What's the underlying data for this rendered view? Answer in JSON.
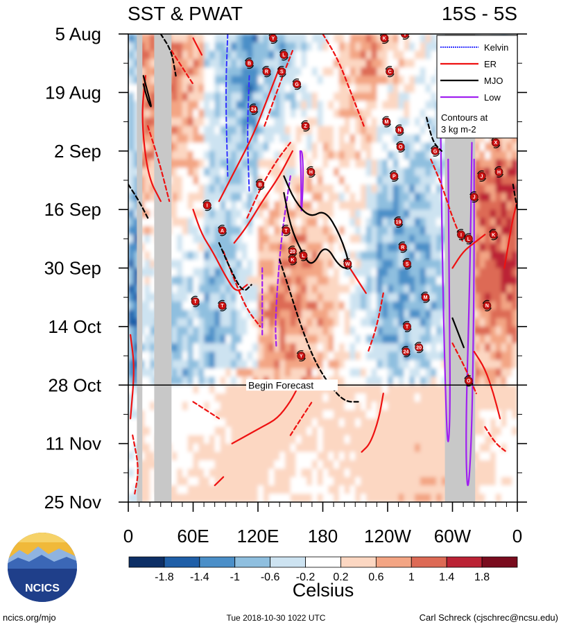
{
  "chart_data": {
    "type": "heatmap",
    "title": "SST & PWAT",
    "subtitle": "15S - 5S",
    "x_tick_labels": [
      "0",
      "60E",
      "120E",
      "180",
      "120W",
      "60W",
      "0"
    ],
    "x_tick_degrees": [
      0,
      60,
      120,
      180,
      240,
      300,
      360
    ],
    "xlim": [
      0,
      360
    ],
    "y_tick_labels": [
      "5 Aug",
      "19 Aug",
      "2 Sep",
      "16 Sep",
      "30 Sep",
      "14 Oct",
      "28 Oct",
      "11 Nov",
      "25 Nov"
    ],
    "y_tick_days": [
      0,
      14,
      28,
      42,
      56,
      70,
      84,
      98,
      112
    ],
    "ylim_days": [
      0,
      112
    ],
    "forecast_start_day": 84,
    "forecast_label": "Begin Forecast",
    "land_masks_deg": [
      [
        8,
        13
      ],
      [
        24,
        40
      ],
      [
        293,
        321
      ]
    ],
    "colorbar": {
      "label": "Celsius",
      "tick_labels": [
        "-1.8",
        "-1.4",
        "-1",
        "-0.6",
        "-0.2",
        "0.2",
        "0.6",
        "1",
        "1.4",
        "1.8"
      ],
      "colors": [
        "#0d2f66",
        "#1f5fa8",
        "#4b8fc8",
        "#8fbfdf",
        "#cde3f1",
        "#ffffff",
        "#fcd7c2",
        "#f3a584",
        "#dd6a55",
        "#bb2335",
        "#7a0c1e"
      ]
    },
    "legend": {
      "placement": "top-right",
      "items": [
        {
          "name": "Kelvin",
          "color": "#3232ff"
        },
        {
          "name": "ER",
          "color": "#ee1111"
        },
        {
          "name": "MJO",
          "color": "#000000"
        },
        {
          "name": "Low",
          "color": "#a020f0"
        }
      ],
      "note_line1": "Contours at",
      "note_line2": "3 kg m-2"
    },
    "storms": [
      {
        "label": "Y",
        "lon": 134,
        "day": 1
      },
      {
        "label": "K",
        "lon": 237,
        "day": 1
      },
      {
        "label": "V",
        "lon": 256,
        "day": 0
      },
      {
        "label": "L",
        "lon": 144,
        "day": 5
      },
      {
        "label": "B",
        "lon": 112,
        "day": 7
      },
      {
        "label": "R",
        "lon": 128,
        "day": 9
      },
      {
        "label": "S",
        "lon": 142,
        "day": 9
      },
      {
        "label": "C",
        "lon": 242,
        "day": 9
      },
      {
        "label": "G",
        "lon": 156,
        "day": 12
      },
      {
        "label": "24",
        "lon": 116,
        "day": 18
      },
      {
        "label": "M",
        "lon": 239,
        "day": 21
      },
      {
        "label": "N",
        "lon": 251,
        "day": 23
      },
      {
        "label": "Z",
        "lon": 164,
        "day": 22
      },
      {
        "label": "O",
        "lon": 252,
        "day": 27
      },
      {
        "label": "G",
        "lon": 284,
        "day": 28
      },
      {
        "label": "X",
        "lon": 340,
        "day": 26
      },
      {
        "label": "H",
        "lon": 169,
        "day": 33
      },
      {
        "label": "H",
        "lon": 343,
        "day": 33
      },
      {
        "label": "P",
        "lon": 246,
        "day": 34
      },
      {
        "label": "J",
        "lon": 327,
        "day": 34
      },
      {
        "label": "B",
        "lon": 122,
        "day": 36
      },
      {
        "label": "J",
        "lon": 320,
        "day": 39
      },
      {
        "label": "I",
        "lon": 73,
        "day": 41
      },
      {
        "label": "19",
        "lon": 250,
        "day": 45
      },
      {
        "label": "A",
        "lon": 87,
        "day": 47
      },
      {
        "label": "T",
        "lon": 146,
        "day": 47
      },
      {
        "label": "I",
        "lon": 308,
        "day": 48
      },
      {
        "label": "L",
        "lon": 315,
        "day": 49
      },
      {
        "label": "K",
        "lon": 338,
        "day": 48
      },
      {
        "label": "R",
        "lon": 254,
        "day": 51
      },
      {
        "label": "20",
        "lon": 152,
        "day": 52
      },
      {
        "label": "L",
        "lon": 162,
        "day": 53
      },
      {
        "label": "K",
        "lon": 152,
        "day": 54
      },
      {
        "label": "W",
        "lon": 203,
        "day": 55
      },
      {
        "label": "S",
        "lon": 258,
        "day": 55
      },
      {
        "label": "M",
        "lon": 275,
        "day": 63
      },
      {
        "label": "T",
        "lon": 62,
        "day": 64
      },
      {
        "label": "T",
        "lon": 87,
        "day": 65
      },
      {
        "label": "N",
        "lon": 332,
        "day": 65
      },
      {
        "label": "T",
        "lon": 258,
        "day": 70
      },
      {
        "label": "24",
        "lon": 257,
        "day": 76
      },
      {
        "label": "20",
        "lon": 269,
        "day": 75
      },
      {
        "label": "Y",
        "lon": 160,
        "day": 77
      },
      {
        "label": "O",
        "lon": 315,
        "day": 83
      }
    ],
    "contours": [
      {
        "type": "Kelvin",
        "phase": "neg",
        "points": [
          [
            92,
            0
          ],
          [
            90,
            14
          ],
          [
            92,
            34
          ]
        ]
      },
      {
        "type": "Kelvin",
        "phase": "neg",
        "points": [
          [
            112,
            10
          ],
          [
            110,
            24
          ],
          [
            112,
            38
          ]
        ]
      },
      {
        "type": "Low",
        "phase": "pos",
        "points": [
          [
            159,
            28
          ],
          [
            160,
            34
          ],
          [
            160,
            45
          ],
          [
            162,
            34
          ],
          [
            161,
            28
          ],
          [
            159,
            28
          ]
        ]
      },
      {
        "type": "Low",
        "phase": "neg",
        "points": [
          [
            150,
            34
          ],
          [
            142,
            48
          ],
          [
            138,
            60
          ],
          [
            136,
            70
          ],
          [
            137,
            75
          ]
        ]
      },
      {
        "type": "Low",
        "phase": "neg",
        "points": [
          [
            124,
            56
          ],
          [
            124,
            66
          ],
          [
            124,
            72
          ]
        ]
      },
      {
        "type": "Low",
        "phase": "pos",
        "points": [
          [
            289,
            22
          ],
          [
            291,
            60
          ],
          [
            294,
            90
          ],
          [
            296,
            100
          ],
          [
            298,
            90
          ],
          [
            297,
            60
          ],
          [
            296,
            30
          ]
        ]
      },
      {
        "type": "Low",
        "phase": "pos",
        "points": [
          [
            318,
            26
          ],
          [
            316,
            60
          ],
          [
            312,
            96
          ],
          [
            314,
            112
          ],
          [
            318,
            96
          ],
          [
            320,
            60
          ],
          [
            320,
            30
          ]
        ]
      },
      {
        "type": "ER",
        "phase": "pos",
        "points": [
          [
            60,
            1
          ],
          [
            64,
            3
          ],
          [
            68,
            5
          ]
        ]
      },
      {
        "type": "ER",
        "phase": "pos",
        "points": [
          [
            16,
            10
          ],
          [
            12,
            20
          ],
          [
            18,
            34
          ],
          [
            30,
            40
          ]
        ]
      },
      {
        "type": "ER",
        "phase": "pos",
        "points": [
          [
            60,
            42
          ],
          [
            68,
            48
          ],
          [
            78,
            52
          ],
          [
            90,
            58
          ],
          [
            100,
            62
          ],
          [
            110,
            60
          ]
        ]
      },
      {
        "type": "ER",
        "phase": "pos",
        "points": [
          [
            98,
            50
          ],
          [
            110,
            46
          ],
          [
            124,
            40
          ],
          [
            140,
            34
          ],
          [
            152,
            28
          ]
        ]
      },
      {
        "type": "ER",
        "phase": "pos",
        "points": [
          [
            84,
            40
          ],
          [
            100,
            32
          ],
          [
            116,
            24
          ],
          [
            128,
            16
          ],
          [
            140,
            8
          ]
        ]
      },
      {
        "type": "ER",
        "phase": "pos",
        "points": [
          [
            2,
            72
          ],
          [
            6,
            80
          ],
          [
            2,
            92
          ]
        ]
      },
      {
        "type": "ER",
        "phase": "pos",
        "points": [
          [
            96,
            98
          ],
          [
            110,
            96
          ],
          [
            124,
            94
          ],
          [
            138,
            92
          ],
          [
            150,
            88
          ],
          [
            158,
            84
          ]
        ]
      },
      {
        "type": "ER",
        "phase": "pos",
        "points": [
          [
            200,
            54
          ],
          [
            210,
            58
          ],
          [
            220,
            62
          ]
        ]
      },
      {
        "type": "ER",
        "phase": "pos",
        "points": [
          [
            236,
            86
          ],
          [
            232,
            92
          ],
          [
            224,
            98
          ],
          [
            216,
            100
          ]
        ]
      },
      {
        "type": "ER",
        "phase": "pos",
        "points": [
          [
            300,
            56
          ],
          [
            310,
            52
          ],
          [
            320,
            50
          ],
          [
            330,
            48
          ]
        ]
      },
      {
        "type": "ER",
        "phase": "pos",
        "points": [
          [
            320,
            76
          ],
          [
            330,
            80
          ],
          [
            338,
            86
          ],
          [
            344,
            92
          ]
        ]
      },
      {
        "type": "ER",
        "phase": "pos",
        "points": [
          [
            348,
            56
          ],
          [
            352,
            50
          ],
          [
            356,
            44
          ],
          [
            360,
            40
          ]
        ]
      },
      {
        "type": "ER",
        "phase": "pos",
        "points": [
          [
            80,
            108
          ],
          [
            88,
            106
          ]
        ]
      },
      {
        "type": "ER",
        "phase": "neg",
        "points": [
          [
            40,
            4
          ],
          [
            50,
            8
          ],
          [
            60,
            12
          ]
        ]
      },
      {
        "type": "ER",
        "phase": "neg",
        "points": [
          [
            18,
            22
          ],
          [
            28,
            30
          ],
          [
            38,
            40
          ]
        ]
      },
      {
        "type": "ER",
        "phase": "neg",
        "points": [
          [
            88,
            52
          ],
          [
            100,
            60
          ],
          [
            110,
            66
          ],
          [
            122,
            70
          ]
        ]
      },
      {
        "type": "ER",
        "phase": "neg",
        "points": [
          [
            110,
            44
          ],
          [
            124,
            36
          ],
          [
            138,
            30
          ],
          [
            150,
            26
          ]
        ]
      },
      {
        "type": "ER",
        "phase": "neg",
        "points": [
          [
            126,
            22
          ],
          [
            140,
            12
          ],
          [
            152,
            4
          ]
        ]
      },
      {
        "type": "ER",
        "phase": "neg",
        "points": [
          [
            180,
            0
          ],
          [
            194,
            6
          ],
          [
            206,
            14
          ],
          [
            218,
            22
          ]
        ]
      },
      {
        "type": "ER",
        "phase": "neg",
        "points": [
          [
            236,
            62
          ],
          [
            230,
            70
          ],
          [
            222,
            76
          ]
        ]
      },
      {
        "type": "ER",
        "phase": "neg",
        "points": [
          [
            4,
            96
          ],
          [
            10,
            104
          ],
          [
            6,
            110
          ]
        ]
      },
      {
        "type": "ER",
        "phase": "neg",
        "points": [
          [
            60,
            88
          ],
          [
            72,
            90
          ],
          [
            84,
            92
          ]
        ]
      },
      {
        "type": "ER",
        "phase": "neg",
        "points": [
          [
            150,
            96
          ],
          [
            160,
            92
          ],
          [
            170,
            88
          ]
        ]
      },
      {
        "type": "ER",
        "phase": "neg",
        "points": [
          [
            280,
            30
          ],
          [
            290,
            36
          ],
          [
            300,
            44
          ],
          [
            310,
            50
          ]
        ]
      },
      {
        "type": "ER",
        "phase": "neg",
        "points": [
          [
            300,
            74
          ],
          [
            312,
            80
          ],
          [
            322,
            86
          ]
        ]
      },
      {
        "type": "ER",
        "phase": "neg",
        "points": [
          [
            330,
            94
          ],
          [
            340,
            98
          ],
          [
            350,
            100
          ]
        ]
      },
      {
        "type": "MJO",
        "phase": "pos",
        "points": [
          [
            14,
            10
          ],
          [
            18,
            14
          ],
          [
            22,
            18
          ],
          [
            18,
            16
          ],
          [
            14,
            12
          ]
        ]
      },
      {
        "type": "MJO",
        "phase": "pos",
        "points": [
          [
            144,
            34
          ],
          [
            154,
            40
          ],
          [
            168,
            44
          ],
          [
            182,
            42
          ],
          [
            196,
            48
          ],
          [
            206,
            56
          ],
          [
            196,
            56
          ],
          [
            182,
            50
          ],
          [
            170,
            56
          ],
          [
            160,
            52
          ],
          [
            150,
            46
          ],
          [
            144,
            38
          ]
        ]
      },
      {
        "type": "MJO",
        "phase": "pos",
        "points": [
          [
            300,
            68
          ],
          [
            306,
            72
          ],
          [
            312,
            76
          ],
          [
            306,
            72
          ]
        ]
      },
      {
        "type": "MJO",
        "phase": "neg",
        "points": [
          [
            30,
            0
          ],
          [
            40,
            4
          ],
          [
            44,
            10
          ]
        ]
      },
      {
        "type": "MJO",
        "phase": "neg",
        "points": [
          [
            0,
            36
          ],
          [
            10,
            40
          ],
          [
            18,
            44
          ]
        ]
      },
      {
        "type": "MJO",
        "phase": "neg",
        "points": [
          [
            84,
            50
          ],
          [
            94,
            56
          ],
          [
            106,
            62
          ],
          [
            114,
            60
          ]
        ]
      },
      {
        "type": "MJO",
        "phase": "neg",
        "points": [
          [
            140,
            54
          ],
          [
            150,
            62
          ],
          [
            160,
            70
          ],
          [
            172,
            78
          ],
          [
            186,
            84
          ],
          [
            200,
            88
          ],
          [
            214,
            88
          ]
        ]
      },
      {
        "type": "MJO",
        "phase": "neg",
        "points": [
          [
            276,
            20
          ],
          [
            282,
            26
          ],
          [
            290,
            28
          ]
        ]
      },
      {
        "type": "MJO",
        "phase": "neg",
        "points": [
          [
            356,
            36
          ],
          [
            360,
            42
          ]
        ]
      }
    ]
  },
  "footer": {
    "url": "ncics.org/mjo",
    "timestamp": "Tue 2018-10-30 1022 UTC",
    "author": "Carl Schreck (cjschrec@ncsu.edu)",
    "logo_text": "NCICS"
  }
}
